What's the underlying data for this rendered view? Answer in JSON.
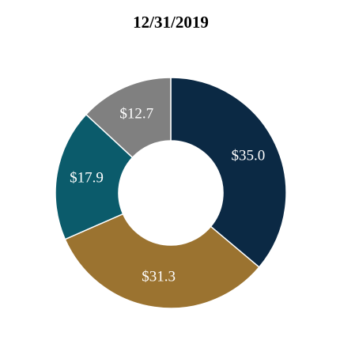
{
  "chart_data": {
    "type": "donut",
    "title": "12/31/2019",
    "values": [
      35.0,
      31.3,
      17.9,
      12.7
    ],
    "value_labels": [
      "$35.0",
      "$31.3",
      "$17.9",
      "$12.7"
    ],
    "colors": [
      "#0b2944",
      "#9b7330",
      "#0b5b6b",
      "#808080"
    ]
  }
}
